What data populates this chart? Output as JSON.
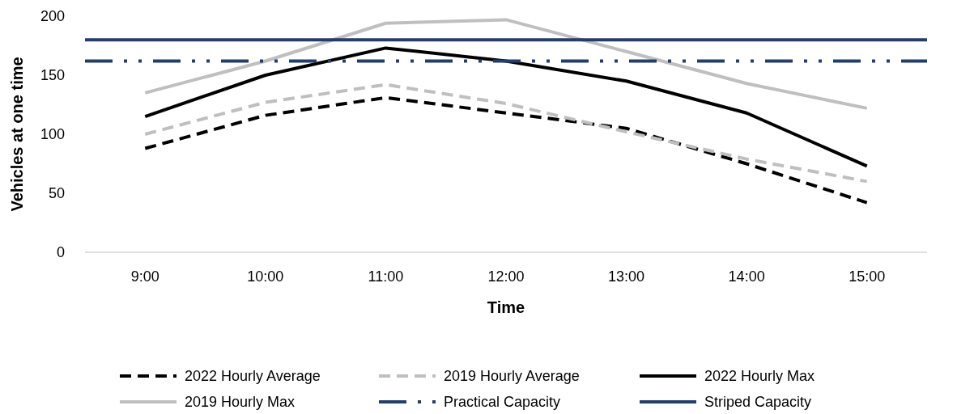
{
  "chart_data": {
    "type": "line",
    "xlabel": "Time",
    "ylabel": "Vehicles at one time",
    "categories": [
      "9:00",
      "10:00",
      "11:00",
      "12:00",
      "13:00",
      "14:00",
      "15:00"
    ],
    "ylim": [
      0,
      200
    ],
    "yticks": [
      0,
      50,
      100,
      150,
      200
    ],
    "grid": false,
    "legend": "bottom",
    "marker": "none",
    "series": [
      {
        "name": "2022 Hourly Average",
        "color": "#000000",
        "line_style": "dashed",
        "values": [
          88,
          116,
          131,
          118,
          105,
          75,
          42
        ]
      },
      {
        "name": "2019 Hourly Average",
        "color": "#bfbfbf",
        "line_style": "dashed",
        "values": [
          100,
          127,
          142,
          126,
          102,
          79,
          60
        ]
      },
      {
        "name": "2022 Hourly Max",
        "color": "#000000",
        "line_style": "solid",
        "values": [
          115,
          150,
          173,
          162,
          145,
          118,
          73
        ]
      },
      {
        "name": "2019 Hourly Max",
        "color": "#bfbfbf",
        "line_style": "solid",
        "values": [
          135,
          162,
          194,
          197,
          170,
          143,
          122
        ]
      }
    ],
    "ref_lines": [
      {
        "axis": "y",
        "value": 162,
        "label": "Practical Capacity",
        "color": "#1f3f73",
        "line_style": "dashed"
      },
      {
        "axis": "y",
        "value": 180,
        "label": "Striped Capacity",
        "color": "#1f3f73",
        "line_style": "solid"
      }
    ]
  }
}
